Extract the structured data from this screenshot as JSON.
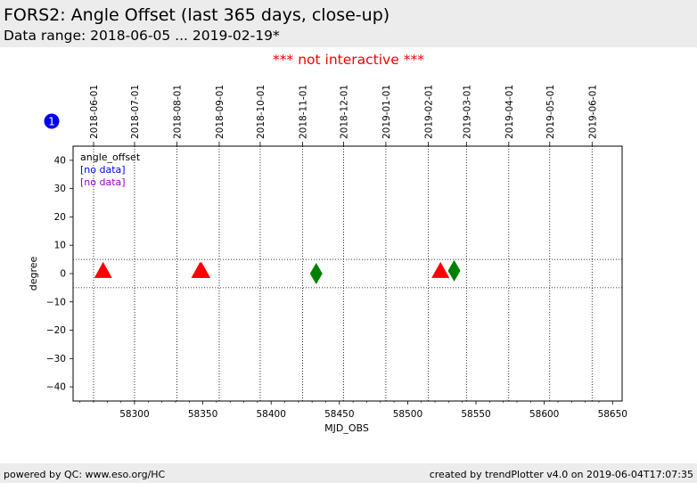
{
  "page": {
    "title": "FORS2: Angle Offset (last 365 days, close-up)",
    "subtitle": "Data range: 2018-06-05 ... 2019-02-19*",
    "notice": "*** not interactive ***",
    "badge": "1",
    "footer_left": "powered by QC: www.eso.org/HC",
    "footer_right": "created by trendPlotter v4.0 on 2019-06-04T17:07:35"
  },
  "chart_data": {
    "type": "scatter",
    "xlabel": "MJD_OBS",
    "ylabel": "degree",
    "xlim": [
      58255,
      58657
    ],
    "ylim": [
      -45,
      45
    ],
    "x_ticks": [
      58300,
      58350,
      58400,
      58450,
      58500,
      58550,
      58600,
      58650
    ],
    "y_ticks": [
      40,
      30,
      20,
      10,
      0,
      -10,
      -20,
      -30,
      -40
    ],
    "date_ticks": [
      {
        "label": "2018-06-01",
        "mjd": 58270
      },
      {
        "label": "2018-07-01",
        "mjd": 58300
      },
      {
        "label": "2018-08-01",
        "mjd": 58331
      },
      {
        "label": "2018-09-01",
        "mjd": 58362
      },
      {
        "label": "2018-10-01",
        "mjd": 58392
      },
      {
        "label": "2018-11-01",
        "mjd": 58423
      },
      {
        "label": "2018-12-01",
        "mjd": 58453
      },
      {
        "label": "2019-01-01",
        "mjd": 58484
      },
      {
        "label": "2019-02-01",
        "mjd": 58515
      },
      {
        "label": "2019-03-01",
        "mjd": 58543
      },
      {
        "label": "2019-04-01",
        "mjd": 58574
      },
      {
        "label": "2019-05-01",
        "mjd": 58604
      },
      {
        "label": "2019-06-01",
        "mjd": 58635
      }
    ],
    "threshold_lines": [
      5,
      -5
    ],
    "legend": [
      {
        "label": "angle_offset",
        "color": "#000000"
      },
      {
        "label": "[no data]",
        "color": "#0000ff"
      },
      {
        "label": "[no data]",
        "color": "#9900cc"
      }
    ],
    "legend_position": "top-left",
    "series": [
      {
        "marker": "triangle",
        "color": "#ff0000",
        "points": [
          {
            "x": 58277,
            "y": 1
          },
          {
            "x": 58348,
            "y": 1
          },
          {
            "x": 58349,
            "y": 1
          },
          {
            "x": 58524,
            "y": 1
          }
        ]
      },
      {
        "marker": "diamond",
        "color": "#008000",
        "points": [
          {
            "x": 58433,
            "y": 0
          },
          {
            "x": 58534,
            "y": 1
          }
        ]
      }
    ]
  }
}
